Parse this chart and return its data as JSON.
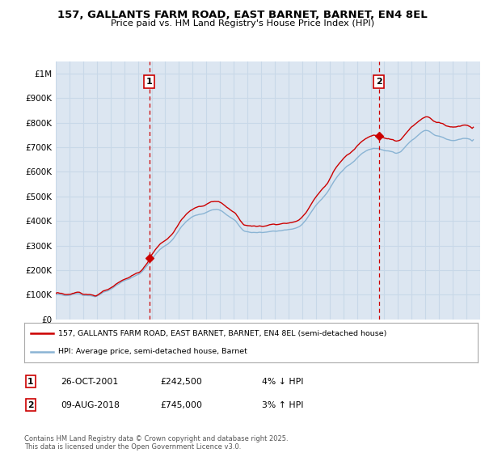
{
  "title_line1": "157, GALLANTS FARM ROAD, EAST BARNET, BARNET, EN4 8EL",
  "title_line2": "Price paid vs. HM Land Registry's House Price Index (HPI)",
  "background_color": "#ffffff",
  "plot_bg_color": "#dce6f1",
  "grid_color": "#c8d8e8",
  "hpi_color": "#8ab4d4",
  "price_color": "#cc0000",
  "vline_color": "#cc0000",
  "marker1_x": 2001.82,
  "marker1_label": "1",
  "marker2_x": 2018.61,
  "marker2_label": "2",
  "marker1_date": "26-OCT-2001",
  "marker1_price": "£242,500",
  "marker1_hpi": "4% ↓ HPI",
  "marker2_date": "09-AUG-2018",
  "marker2_price": "£745,000",
  "marker2_hpi": "3% ↑ HPI",
  "legend_line1": "157, GALLANTS FARM ROAD, EAST BARNET, BARNET, EN4 8EL (semi-detached house)",
  "legend_line2": "HPI: Average price, semi-detached house, Barnet",
  "footnote": "Contains HM Land Registry data © Crown copyright and database right 2025.\nThis data is licensed under the Open Government Licence v3.0.",
  "ylim_max": 1050000,
  "yticks": [
    0,
    100000,
    200000,
    300000,
    400000,
    500000,
    600000,
    700000,
    800000,
    900000,
    1000000
  ],
  "ytick_labels": [
    "£0",
    "£100K",
    "£200K",
    "£300K",
    "£400K",
    "£500K",
    "£600K",
    "£700K",
    "£800K",
    "£900K",
    "£1M"
  ],
  "xmin": 1995,
  "xmax": 2026
}
